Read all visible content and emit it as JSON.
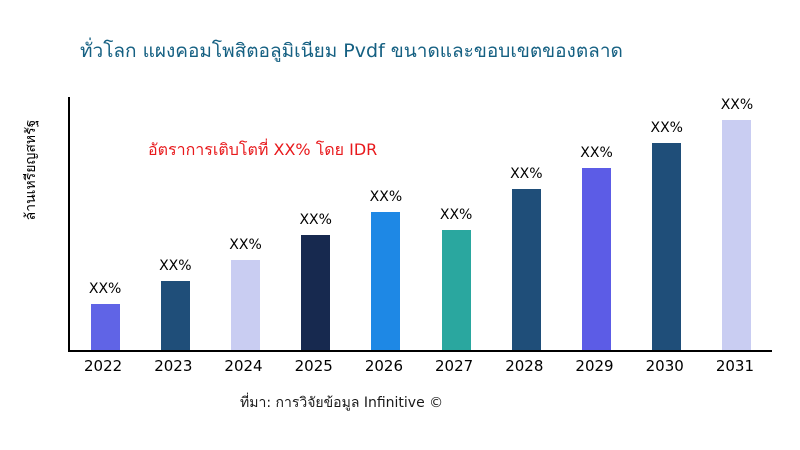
{
  "title": "ทั่วโลก แผงคอมโพสิตอลูมิเนียม Pvdf ขนาดและขอบเขตของตลาด",
  "annotation": "อัตราการเติบโตที่ XX% โดย IDR",
  "ylabel": "ล้านเหรียญสหรัฐ",
  "source": "ที่มา: การวิจัยข้อมูล Infinitive ©",
  "colors": {
    "title": "#156082",
    "annotation": "#e8191c",
    "axis": "#000000",
    "background": "#ffffff"
  },
  "chart_data": {
    "type": "bar",
    "title": "ทั่วโลก แผงคอมโพสิตอลูมิเนียม Pvdf ขนาดและขอบเขตของตลาด",
    "xlabel": "",
    "ylabel": "ล้านเหรียญสหรัฐ",
    "categories": [
      "2022",
      "2023",
      "2024",
      "2025",
      "2026",
      "2027",
      "2028",
      "2029",
      "2030",
      "2031"
    ],
    "values": [
      20,
      30,
      39,
      50,
      60,
      52,
      70,
      79,
      90,
      100
    ],
    "value_note": "bar heights estimated as percent of tallest bar; actual values masked as XX% in source image",
    "bar_labels": [
      "XX%",
      "XX%",
      "XX%",
      "XX%",
      "XX%",
      "XX%",
      "XX%",
      "XX%",
      "XX%",
      "XX%"
    ],
    "bar_colors": [
      "#6064e6",
      "#1f4e79",
      "#c9cdf2",
      "#17294f",
      "#1e88e5",
      "#2aa79f",
      "#1f4e79",
      "#5c5ce6",
      "#1f4e79",
      "#c9cdf2"
    ],
    "annotation": "อัตราการเติบโตที่ XX% โดย IDR",
    "grid": false,
    "legend": false,
    "ylim_note": "no y-axis tick labels visible"
  }
}
